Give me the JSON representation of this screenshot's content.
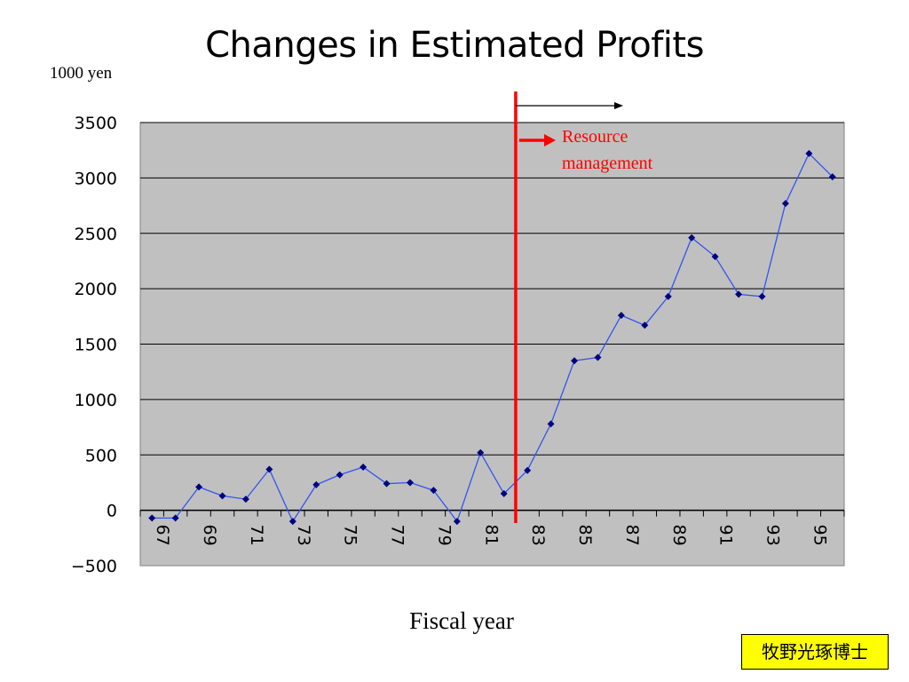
{
  "slide": {
    "title": "Changes in Estimated Profits",
    "y_unit_label": "1000 yen",
    "x_axis_label": "Fiscal year",
    "annotation": "Resource management",
    "author_badge": "牧野光琢博士"
  },
  "colors": {
    "plot_background": "#c0c0c0",
    "series_line": "#3355ee",
    "series_marker": "#000080",
    "marker_line": "#ff0000",
    "badge_background": "#ffff00"
  },
  "chart_data": {
    "type": "line",
    "title": "Changes in Estimated Profits",
    "xlabel": "Fiscal year",
    "ylabel": "1000 yen",
    "ylim": [
      -500,
      3500
    ],
    "yticks": [
      -500,
      0,
      500,
      1000,
      1500,
      2000,
      2500,
      3000,
      3500
    ],
    "grid": true,
    "categories": [
      "67",
      "68",
      "69",
      "70",
      "71",
      "72",
      "73",
      "74",
      "75",
      "76",
      "77",
      "78",
      "79",
      "80",
      "81",
      "82",
      "83",
      "84",
      "85",
      "86",
      "87",
      "88",
      "89",
      "90",
      "91",
      "92",
      "93",
      "94",
      "95",
      "96"
    ],
    "tick_labels": [
      "67",
      "69",
      "71",
      "73",
      "75",
      "77",
      "79",
      "81",
      "83",
      "85",
      "87",
      "89",
      "91",
      "93",
      "95"
    ],
    "series": [
      {
        "values": [
          -70,
          -70,
          210,
          130,
          100,
          370,
          -100,
          230,
          320,
          390,
          240,
          250,
          180,
          -100,
          520,
          150,
          360,
          780,
          1350,
          1380,
          1760,
          1670,
          1930,
          2460,
          2290,
          1950,
          1930,
          2770,
          3220,
          3010
        ]
      }
    ],
    "vertical_marker": {
      "after_category": "82",
      "annotation": "Resource management"
    }
  }
}
